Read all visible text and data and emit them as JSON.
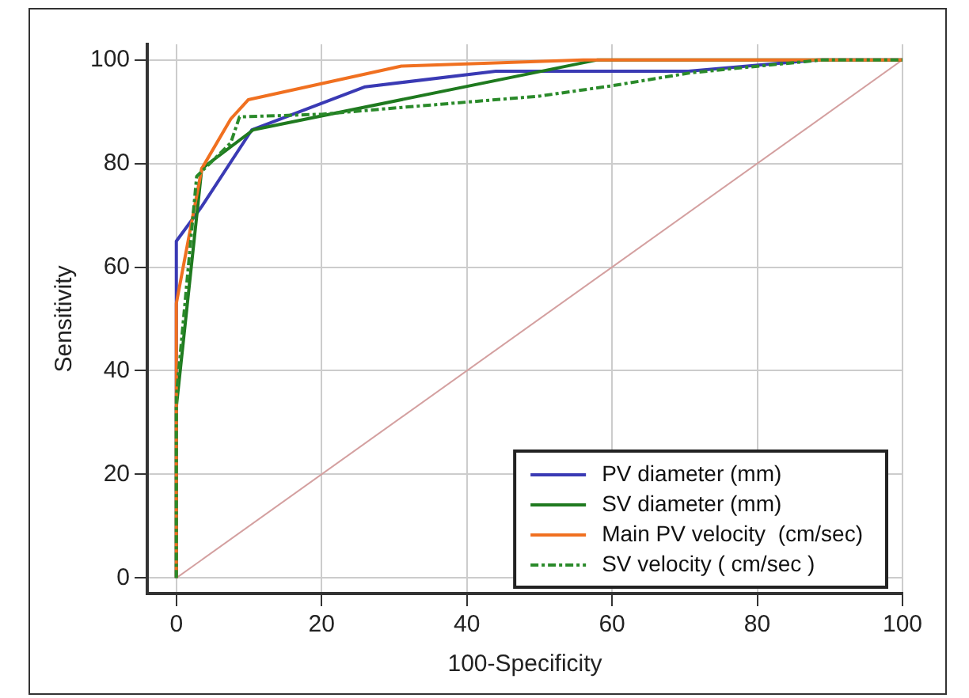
{
  "chart_data": {
    "type": "line",
    "xlabel": "100-Specificity",
    "ylabel": "Sensitivity",
    "xlim": [
      -4,
      100
    ],
    "xticks": [
      0,
      20,
      40,
      60,
      80,
      100
    ],
    "ylim": [
      -3,
      103
    ],
    "yticks": [
      0,
      20,
      40,
      60,
      80,
      100
    ],
    "grid": true,
    "legend": "bottom right",
    "marker": "none",
    "series": [
      {
        "name": "PV diameter (mm)",
        "color": "#3a3ab4",
        "line_style": "solid",
        "x": [
          0,
          0,
          3.5,
          10.4,
          26,
          44,
          70.5,
          88.4,
          100
        ],
        "values": [
          0,
          65,
          71.7,
          86.5,
          94.8,
          97.8,
          97.8,
          100,
          100
        ]
      },
      {
        "name": "SV diameter (mm)",
        "color": "#1f7a1f",
        "line_style": "solid",
        "x": [
          0,
          0,
          3.5,
          10.6,
          58,
          100
        ],
        "values": [
          0,
          33,
          79,
          86.5,
          100,
          100
        ]
      },
      {
        "name": "Main PV velocity  (cm/sec)",
        "color": "#f07020",
        "line_style": "solid",
        "x": [
          0,
          0,
          3.5,
          7.5,
          9.9,
          31,
          56,
          100
        ],
        "values": [
          0,
          53,
          79,
          88.6,
          92.3,
          98.8,
          100,
          100
        ]
      },
      {
        "name": "SV velocity ( cm/sec )",
        "color": "#2a8a2a",
        "line_style": "dashed",
        "x": [
          0,
          0,
          2.8,
          7.5,
          8.7,
          20,
          30,
          50,
          60,
          70.8,
          89,
          100
        ],
        "values": [
          0,
          35,
          77.5,
          84,
          89,
          89.5,
          90.7,
          93,
          95,
          97.5,
          100,
          100
        ]
      },
      {
        "color": "#d4a0a0",
        "line_style": "solid",
        "x": [
          0,
          100
        ],
        "values": [
          0,
          100
        ]
      }
    ]
  }
}
